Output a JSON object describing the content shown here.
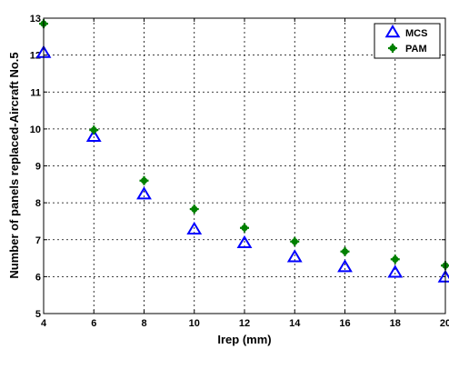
{
  "chart_data": {
    "type": "scatter",
    "title": "",
    "xlabel": "Irep (mm)",
    "ylabel": "Number of panels replaced-Aircraft No.5",
    "xlim": [
      4,
      20
    ],
    "ylim": [
      5,
      13
    ],
    "xticks": [
      4,
      6,
      8,
      10,
      12,
      14,
      16,
      18,
      20
    ],
    "yticks": [
      5,
      6,
      7,
      8,
      9,
      10,
      11,
      12,
      13
    ],
    "xtick_labels": [
      "4",
      "6",
      "8",
      "10",
      "12",
      "14",
      "16",
      "18",
      "20"
    ],
    "ytick_labels": [
      "5",
      "6",
      "7",
      "8",
      "9",
      "10",
      "11",
      "12",
      "13"
    ],
    "grid": true,
    "grid_style": "dotted",
    "legend_position": "top-right",
    "series": [
      {
        "name": "MCS",
        "marker": "triangle-open",
        "color": "#0000ff",
        "x": [
          4,
          6,
          8,
          10,
          12,
          14,
          16,
          18,
          20
        ],
        "y": [
          12.05,
          9.78,
          8.22,
          7.27,
          6.9,
          6.52,
          6.25,
          6.1,
          5.97
        ]
      },
      {
        "name": "PAM",
        "marker": "star-filled",
        "color": "#008000",
        "x": [
          4,
          6,
          8,
          10,
          12,
          14,
          16,
          18,
          20
        ],
        "y": [
          12.85,
          9.97,
          8.6,
          7.83,
          7.32,
          6.95,
          6.68,
          6.47,
          6.3
        ]
      }
    ]
  }
}
